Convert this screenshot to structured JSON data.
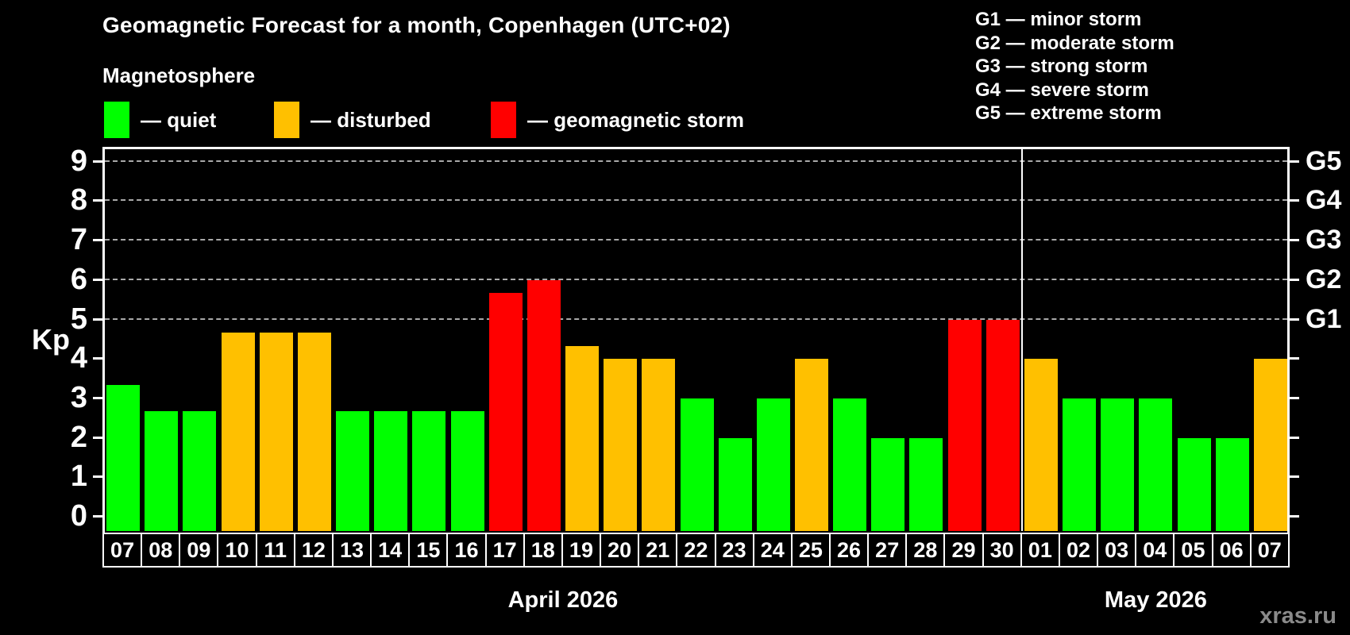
{
  "title": "Geomagnetic Forecast for a month, Copenhagen (UTC+02)",
  "subtitle": "Magnetosphere",
  "legend": {
    "items": [
      {
        "key": "quiet",
        "label": "— quiet",
        "color": "#00ff00"
      },
      {
        "key": "disturbed",
        "label": "— disturbed",
        "color": "#ffc000"
      },
      {
        "key": "storm",
        "label": "— geomagnetic storm",
        "color": "#ff0000"
      }
    ]
  },
  "storm_scale_legend": [
    "G1 — minor storm",
    "G2 — moderate storm",
    "G3 — strong storm",
    "G4 — severe storm",
    "G5 — extreme storm"
  ],
  "watermark": "xras.ru",
  "chart_data": {
    "type": "bar",
    "title": "Geomagnetic Forecast for a month, Copenhagen (UTC+02)",
    "xlabel": "",
    "ylabel": "Kp",
    "ylim": [
      0,
      9
    ],
    "y_ticks": [
      0,
      1,
      2,
      3,
      4,
      5,
      6,
      7,
      8,
      9
    ],
    "grid": {
      "horizontal_dashed_at": [
        5,
        6,
        7,
        8,
        9
      ],
      "color": "#a9a9a9"
    },
    "right_axis_labels": [
      {
        "kp": 5,
        "label": "G1"
      },
      {
        "kp": 6,
        "label": "G2"
      },
      {
        "kp": 7,
        "label": "G3"
      },
      {
        "kp": 8,
        "label": "G4"
      },
      {
        "kp": 9,
        "label": "G5"
      }
    ],
    "months": [
      {
        "label": "April 2026",
        "count": 24
      },
      {
        "label": "May 2026",
        "count": 7
      }
    ],
    "categories": [
      "07",
      "08",
      "09",
      "10",
      "11",
      "12",
      "13",
      "14",
      "15",
      "16",
      "17",
      "18",
      "19",
      "20",
      "21",
      "22",
      "23",
      "24",
      "25",
      "26",
      "27",
      "28",
      "29",
      "30",
      "01",
      "02",
      "03",
      "04",
      "05",
      "06",
      "07"
    ],
    "values": [
      3.33,
      2.67,
      2.67,
      4.67,
      4.67,
      4.67,
      2.67,
      2.67,
      2.67,
      2.67,
      5.67,
      6.0,
      4.33,
      4.0,
      4.0,
      3.0,
      2.0,
      3.0,
      4.0,
      3.0,
      2.0,
      2.0,
      5.0,
      5.0,
      4.0,
      3.0,
      3.0,
      3.0,
      2.0,
      2.0,
      4.0
    ],
    "statuses": [
      "quiet",
      "quiet",
      "quiet",
      "disturbed",
      "disturbed",
      "disturbed",
      "quiet",
      "quiet",
      "quiet",
      "quiet",
      "storm",
      "storm",
      "disturbed",
      "disturbed",
      "disturbed",
      "quiet",
      "quiet",
      "quiet",
      "disturbed",
      "quiet",
      "quiet",
      "quiet",
      "storm",
      "storm",
      "disturbed",
      "quiet",
      "quiet",
      "quiet",
      "quiet",
      "quiet",
      "disturbed"
    ],
    "status_colors": {
      "quiet": "#00ff00",
      "disturbed": "#ffc000",
      "storm": "#ff0000"
    },
    "legend_position": "top"
  }
}
